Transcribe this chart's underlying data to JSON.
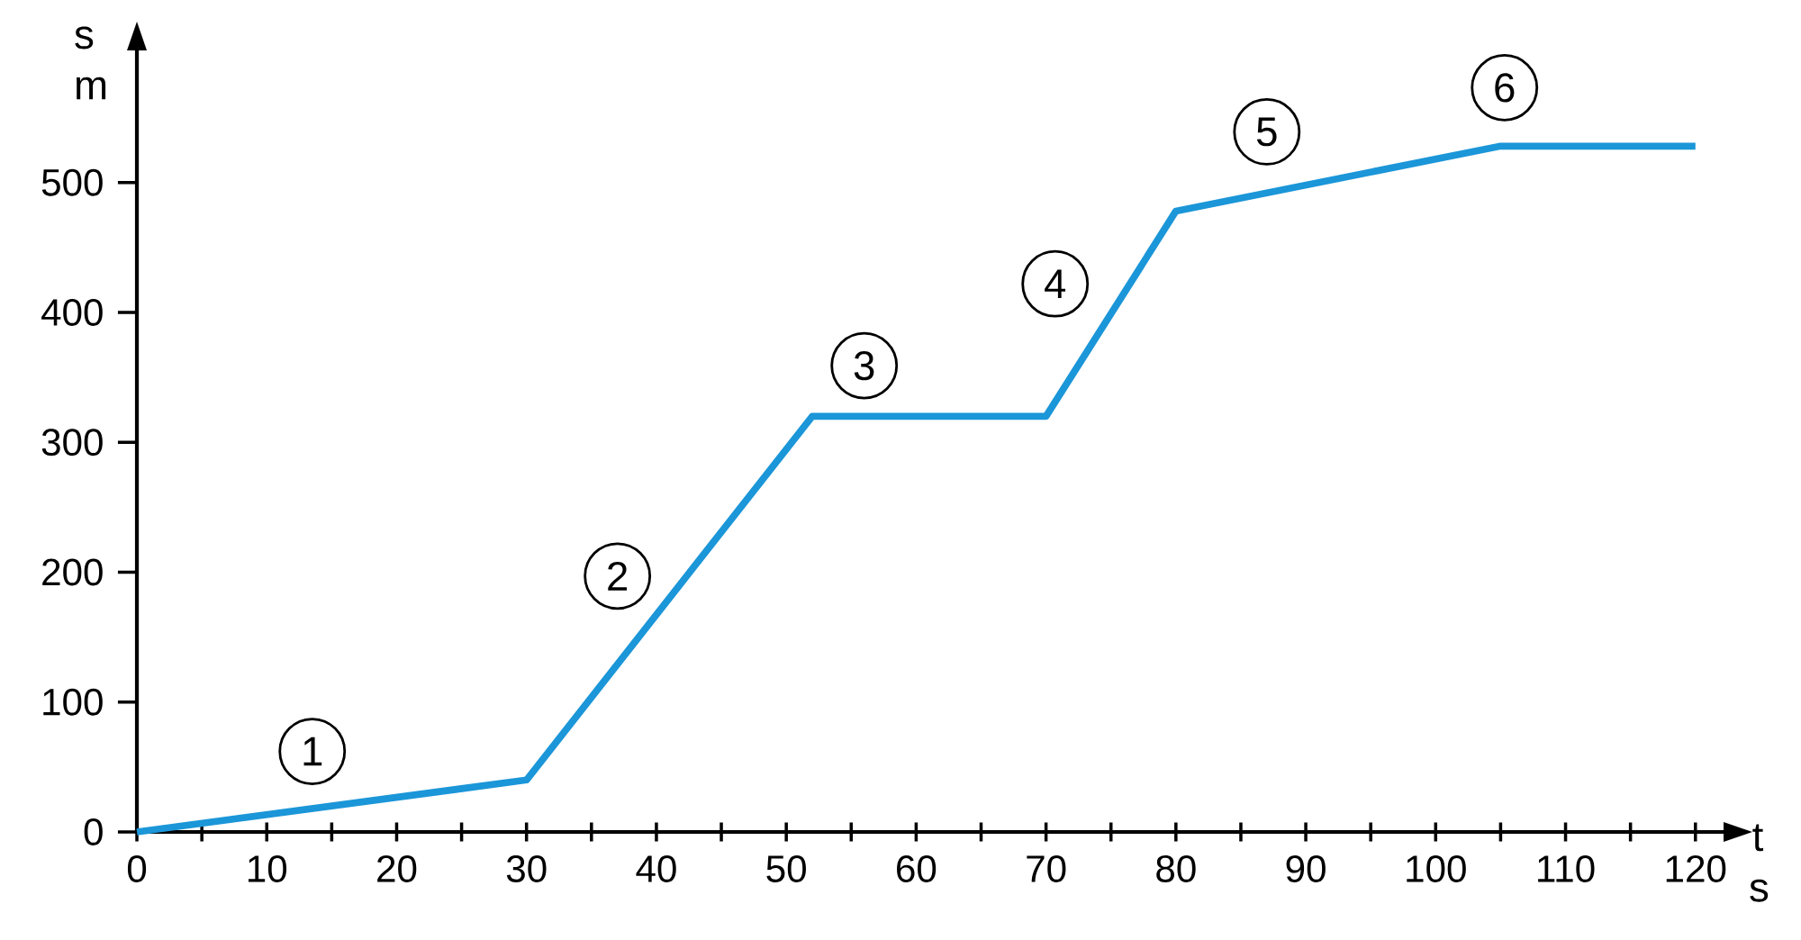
{
  "chart_data": {
    "type": "line",
    "xlabel": "t s",
    "ylabel": "s m",
    "x": [
      0,
      30,
      52,
      70,
      80,
      105,
      120
    ],
    "values": [
      0,
      40,
      320,
      320,
      478,
      528,
      528
    ],
    "color": "#1b96d8",
    "xlim": [
      0,
      123
    ],
    "ylim": [
      0,
      610
    ],
    "xticks": [
      0,
      {
        "value": 5,
        "label": null
      },
      10,
      {
        "value": 15,
        "label": null
      },
      20,
      {
        "value": 25,
        "label": null
      },
      30,
      {
        "value": 35,
        "label": null
      },
      40,
      {
        "value": 45,
        "label": null
      },
      50,
      {
        "value": 55,
        "label": null
      },
      60,
      {
        "value": 65,
        "label": null
      },
      70,
      {
        "value": 75,
        "label": null
      },
      80,
      {
        "value": 85,
        "label": null
      },
      90,
      {
        "value": 95,
        "label": null
      },
      100,
      {
        "value": 105,
        "label": null
      },
      110,
      {
        "value": 115,
        "label": null
      },
      120
    ],
    "yticks": [
      0,
      100,
      200,
      300,
      400,
      500
    ],
    "annotations": [
      {
        "text": "1",
        "x": 13.5,
        "y": 62
      },
      {
        "text": "2",
        "x": 37,
        "y": 197
      },
      {
        "text": "3",
        "x": 56,
        "y": 359
      },
      {
        "text": "4",
        "x": 70.7,
        "y": 422
      },
      {
        "text": "5",
        "x": 87,
        "y": 539
      },
      {
        "text": "6",
        "x": 105.3,
        "y": 573
      }
    ]
  }
}
